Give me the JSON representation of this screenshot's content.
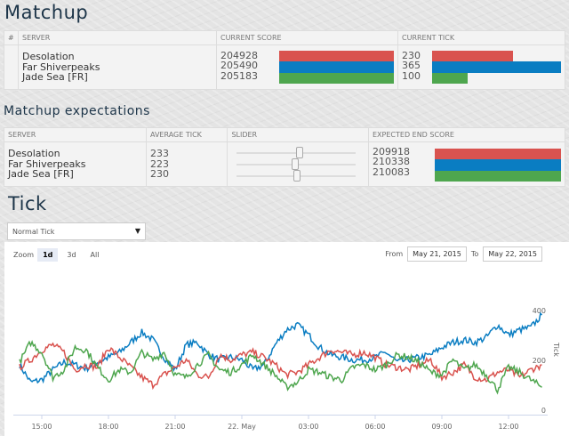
{
  "matchup": {
    "title": "Matchup",
    "headers": [
      "#",
      "SERVER",
      "CURRENT SCORE",
      "CURRENT TICK"
    ],
    "servers": [
      {
        "name": "Desolation",
        "score": 204928,
        "tick": 230,
        "color": "#d9534f"
      },
      {
        "name": "Far Shiverpeaks",
        "score": 205490,
        "tick": 365,
        "color": "#0a7dc2"
      },
      {
        "name": "Jade Sea [FR]",
        "score": 205183,
        "tick": 100,
        "color": "#4ea64e"
      }
    ]
  },
  "expectations": {
    "title": "Matchup expectations",
    "headers": [
      "SERVER",
      "AVERAGE TICK",
      "SLIDER",
      "EXPECTED END SCORE"
    ],
    "rows": [
      {
        "name": "Desolation",
        "avg": 233,
        "slider": 0.52,
        "expected": 209918
      },
      {
        "name": "Far Shiverpeaks",
        "avg": 223,
        "slider": 0.48,
        "expected": 210338
      },
      {
        "name": "Jade Sea [FR]",
        "avg": 230,
        "slider": 0.5,
        "expected": 210083
      }
    ]
  },
  "tick": {
    "title": "Tick",
    "select": "Normal Tick",
    "zoom_label": "Zoom",
    "zoom_options": [
      "1d",
      "3d",
      "All"
    ],
    "from_label": "From",
    "from": "May 21, 2015",
    "to_label": "To",
    "to": "May 22, 2015"
  },
  "chart_data": {
    "type": "line",
    "ylabel": "Tick",
    "ylim": [
      0,
      400
    ],
    "yticks": [
      "0",
      "200",
      "400"
    ],
    "xticks": [
      {
        "h": 15,
        "label": "15:00"
      },
      {
        "h": 18,
        "label": "18:00"
      },
      {
        "h": 21,
        "label": "21:00"
      },
      {
        "h": 24,
        "label": "22. May"
      },
      {
        "h": 27,
        "label": "03:00"
      },
      {
        "h": 30,
        "label": "06:00"
      },
      {
        "h": 33,
        "label": "09:00"
      },
      {
        "h": 36,
        "label": "12:00"
      }
    ],
    "x_start_hour": 14,
    "x_step_hours": 0.5,
    "series": [
      {
        "name": "Far Shiverpeaks",
        "color": "#0a7dc2",
        "values": [
          200,
          130,
          140,
          180,
          210,
          200,
          185,
          210,
          230,
          250,
          290,
          330,
          300,
          230,
          180,
          280,
          290,
          240,
          220,
          230,
          220,
          180,
          200,
          280,
          340,
          360,
          320,
          270,
          240,
          230,
          220,
          220,
          230,
          250,
          210,
          220,
          230,
          240,
          270,
          290,
          300,
          290,
          310,
          360,
          320,
          340,
          350,
          400
        ]
      },
      {
        "name": "Desolation",
        "color": "#d9534f",
        "values": [
          190,
          220,
          260,
          280,
          250,
          180,
          200,
          190,
          270,
          230,
          190,
          150,
          120,
          160,
          190,
          220,
          160,
          150,
          240,
          220,
          240,
          250,
          230,
          200,
          160,
          170,
          200,
          230,
          260,
          250,
          240,
          250,
          230,
          200,
          190,
          180,
          200,
          220,
          150,
          170,
          200,
          150,
          140,
          170,
          180,
          150,
          180,
          200
        ]
      },
      {
        "name": "Jade Sea [FR]",
        "color": "#4ea64e",
        "values": [
          210,
          290,
          250,
          150,
          180,
          270,
          260,
          190,
          140,
          180,
          170,
          250,
          220,
          250,
          160,
          150,
          200,
          240,
          180,
          170,
          200,
          240,
          200,
          160,
          110,
          130,
          180,
          170,
          150,
          140,
          190,
          200,
          180,
          200,
          240,
          230,
          210,
          170,
          160,
          220,
          180,
          200,
          160,
          100,
          190,
          170,
          140,
          110
        ]
      }
    ]
  }
}
